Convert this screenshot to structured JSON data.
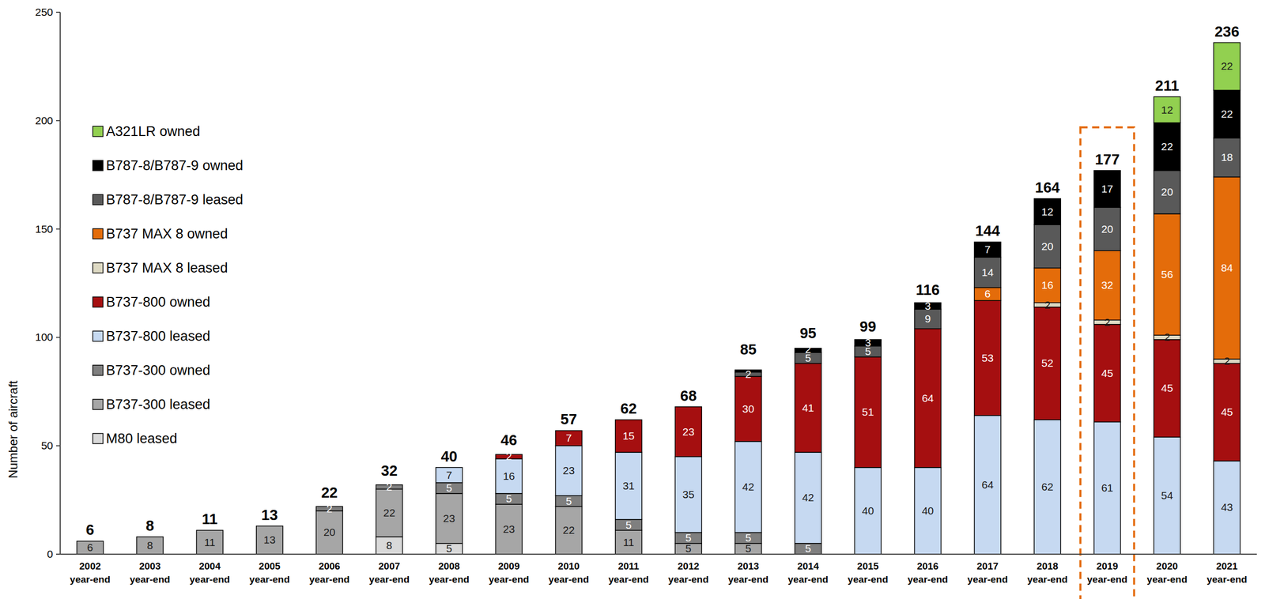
{
  "chart_data": {
    "type": "bar",
    "stacked": true,
    "data_labels": true,
    "legend": "upper left",
    "grid": false,
    "y_label": "Number of aircraft",
    "categories": [
      "2002 year-end",
      "2003 year-end",
      "2004 year-end",
      "2005 year-end",
      "2006 year-end",
      "2007 year-end",
      "2008 year-end",
      "2009 year-end",
      "2010 year-end",
      "2011 year-end",
      "2012 year-end",
      "2013 year-end",
      "2014 year-end",
      "2015 year-end",
      "2016 year-end",
      "2017 year-end",
      "2018 year-end",
      "2019 year-end",
      "2020 year-end",
      "2021 year-end"
    ],
    "ylim": [
      0,
      250
    ],
    "yticks": [
      0,
      50,
      100,
      150,
      200,
      250
    ],
    "totals": [
      6,
      8,
      11,
      13,
      22,
      32,
      40,
      46,
      57,
      62,
      68,
      85,
      95,
      99,
      116,
      144,
      164,
      177,
      211,
      236
    ],
    "series": [
      {
        "name": "M80 leased",
        "color": "#d9d9d9",
        "values": [
          0,
          0,
          0,
          0,
          0,
          8,
          5,
          0,
          0,
          0,
          0,
          0,
          0,
          0,
          0,
          0,
          0,
          0,
          0,
          0
        ]
      },
      {
        "name": "B737-300 leased",
        "color": "#a6a6a6",
        "values": [
          6,
          8,
          11,
          13,
          20,
          22,
          23,
          23,
          22,
          11,
          5,
          5,
          0,
          0,
          0,
          0,
          0,
          0,
          0,
          0
        ]
      },
      {
        "name": "B737-300 owned",
        "color": "#7f7f7f",
        "values": [
          0,
          0,
          0,
          0,
          2,
          2,
          5,
          5,
          5,
          5,
          5,
          5,
          5,
          0,
          0,
          0,
          0,
          0,
          0,
          0
        ]
      },
      {
        "name": "B737-800 leased",
        "color": "#c6d9f1",
        "values": [
          0,
          0,
          0,
          0,
          0,
          0,
          7,
          16,
          23,
          31,
          35,
          42,
          42,
          40,
          40,
          64,
          62,
          61,
          54,
          43
        ]
      },
      {
        "name": "B737-800 owned",
        "color": "#a50f10",
        "values": [
          0,
          0,
          0,
          0,
          0,
          0,
          0,
          2,
          7,
          15,
          23,
          30,
          41,
          51,
          64,
          53,
          52,
          45,
          45,
          45
        ]
      },
      {
        "name": "B737 MAX 8 leased",
        "color": "#ddd9c3",
        "values": [
          0,
          0,
          0,
          0,
          0,
          0,
          0,
          0,
          0,
          0,
          0,
          0,
          0,
          0,
          0,
          0,
          2,
          2,
          2,
          2
        ]
      },
      {
        "name": "B737 MAX 8 owned",
        "color": "#e46c0a",
        "values": [
          0,
          0,
          0,
          0,
          0,
          0,
          0,
          0,
          0,
          0,
          0,
          0,
          0,
          0,
          0,
          6,
          16,
          32,
          56,
          84
        ]
      },
      {
        "name": "B787-8/B787-9 leased",
        "color": "#595959",
        "values": [
          0,
          0,
          0,
          0,
          0,
          0,
          0,
          0,
          0,
          0,
          0,
          2,
          5,
          5,
          9,
          14,
          20,
          20,
          20,
          18
        ]
      },
      {
        "name": "B787-8/B787-9 owned",
        "color": "#000000",
        "values": [
          0,
          0,
          0,
          0,
          0,
          0,
          0,
          0,
          0,
          0,
          0,
          1,
          2,
          3,
          3,
          7,
          12,
          17,
          22,
          22
        ]
      },
      {
        "name": "A321LR owned",
        "color": "#92d050",
        "values": [
          0,
          0,
          0,
          0,
          0,
          0,
          0,
          0,
          0,
          0,
          0,
          0,
          0,
          0,
          0,
          0,
          0,
          0,
          12,
          22
        ]
      }
    ]
  }
}
